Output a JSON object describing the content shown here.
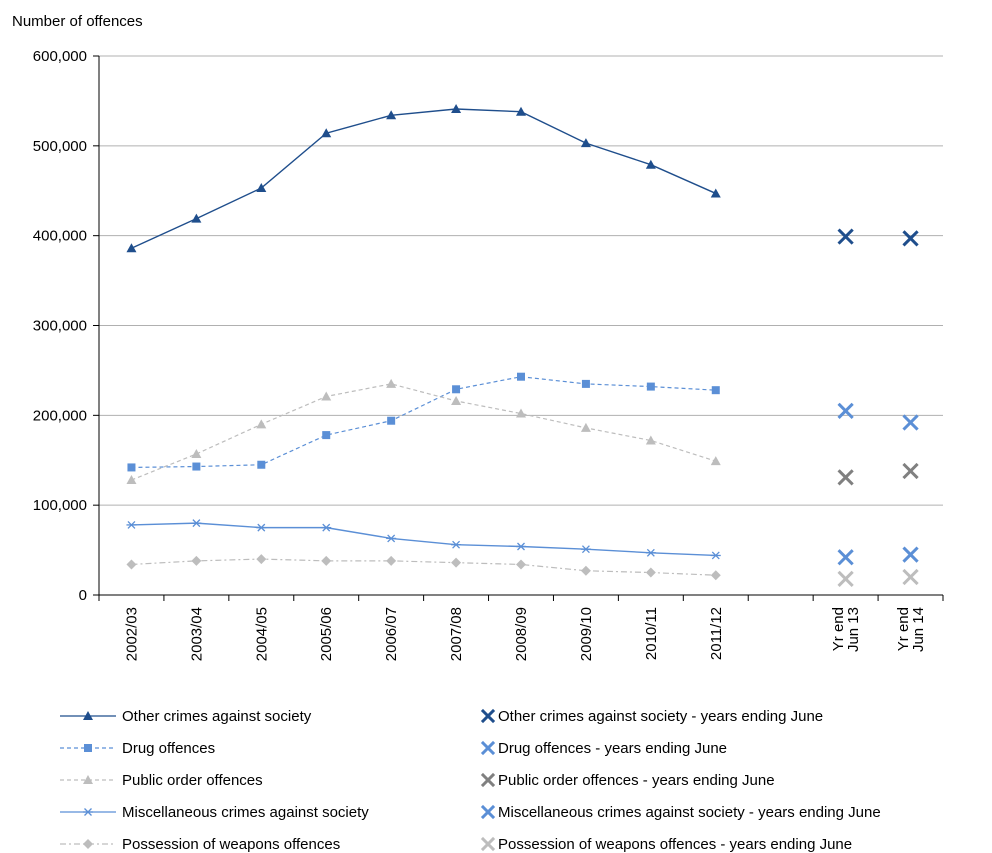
{
  "chart_data": {
    "type": "line",
    "ylabel": "Number of offences",
    "ylim": [
      0,
      600000
    ],
    "yticks": [
      "0",
      "100,000",
      "200,000",
      "300,000",
      "400,000",
      "500,000",
      "600,000"
    ],
    "ytick_values": [
      0,
      100000,
      200000,
      300000,
      400000,
      500000,
      600000
    ],
    "grid": true,
    "categories": [
      "2002/03",
      "2003/04",
      "2004/05",
      "2005/06",
      "2006/07",
      "2007/08",
      "2008/09",
      "2009/10",
      "2010/11",
      "2011/12",
      "",
      "Yr end Jun 13",
      "Yr end Jun 14"
    ],
    "category_label_lines": [
      [
        "2002/03"
      ],
      [
        "2003/04"
      ],
      [
        "2004/05"
      ],
      [
        "2005/06"
      ],
      [
        "2006/07"
      ],
      [
        "2007/08"
      ],
      [
        "2008/09"
      ],
      [
        "2009/10"
      ],
      [
        "2010/11"
      ],
      [
        "2011/12"
      ],
      [],
      [
        "Yr end",
        "Jun 13"
      ],
      [
        "Yr end",
        "Jun 14"
      ]
    ],
    "series": [
      {
        "name": "Other crimes against society",
        "color": "#1f4e8c",
        "dash": "none",
        "marker": "triangle",
        "values": [
          386000,
          419000,
          453000,
          514000,
          534000,
          541000,
          538000,
          503000,
          479000,
          447000,
          null,
          null,
          null
        ]
      },
      {
        "name": "Drug offences",
        "color": "#5b8fd6",
        "dash": "4,3",
        "marker": "square",
        "values": [
          142000,
          143000,
          145000,
          178000,
          194000,
          229000,
          243000,
          235000,
          232000,
          228000,
          null,
          null,
          null
        ]
      },
      {
        "name": "Public order offences",
        "color": "#bdbdbd",
        "dash": "4,3",
        "marker": "triangle",
        "values": [
          128000,
          157000,
          190000,
          221000,
          235000,
          216000,
          202000,
          186000,
          172000,
          149000,
          null,
          null,
          null
        ]
      },
      {
        "name": "Miscellaneous crimes against society",
        "color": "#5b8fd6",
        "dash": "none",
        "marker": "asterisk",
        "values": [
          78000,
          80000,
          75000,
          75000,
          63000,
          56000,
          54000,
          51000,
          47000,
          44000,
          null,
          null,
          null
        ]
      },
      {
        "name": "Possession of weapons offences",
        "color": "#bdbdbd",
        "dash": "6,3,2,3",
        "marker": "diamond",
        "values": [
          34000,
          38000,
          40000,
          38000,
          38000,
          36000,
          34000,
          27000,
          25000,
          22000,
          null,
          null,
          null
        ]
      },
      {
        "name": "Other crimes against society - years ending June",
        "color": "#1f4e8c",
        "marker": "x",
        "values": [
          null,
          null,
          null,
          null,
          null,
          null,
          null,
          null,
          null,
          null,
          null,
          399000,
          397000
        ]
      },
      {
        "name": "Drug offences - years ending June",
        "color": "#5b8fd6",
        "marker": "x",
        "values": [
          null,
          null,
          null,
          null,
          null,
          null,
          null,
          null,
          null,
          null,
          null,
          205000,
          192000
        ]
      },
      {
        "name": "Public order offences - years ending June",
        "color": "#808080",
        "marker": "x",
        "values": [
          null,
          null,
          null,
          null,
          null,
          null,
          null,
          null,
          null,
          null,
          null,
          131000,
          138000
        ]
      },
      {
        "name": "Miscellaneous crimes against society - years ending June",
        "color": "#5b8fd6",
        "marker": "x",
        "values": [
          null,
          null,
          null,
          null,
          null,
          null,
          null,
          null,
          null,
          null,
          null,
          42000,
          45000
        ]
      },
      {
        "name": "Possession of weapons  offences - years ending June",
        "color": "#bdbdbd",
        "marker": "x",
        "values": [
          null,
          null,
          null,
          null,
          null,
          null,
          null,
          null,
          null,
          null,
          null,
          18000,
          20000
        ]
      }
    ],
    "legend": {
      "placement": "bottom",
      "columns": 2
    }
  }
}
